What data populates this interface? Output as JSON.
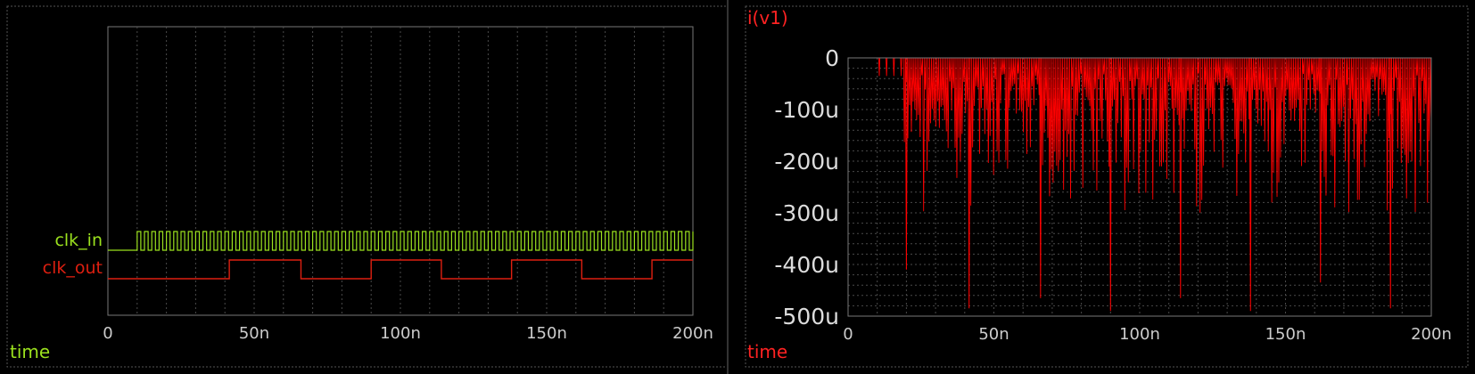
{
  "chart_data": [
    {
      "type": "line",
      "xlabel": "time",
      "x_ticks": [
        "0",
        "50n",
        "100n",
        "150n",
        "200n"
      ],
      "xlim": [
        0,
        200
      ],
      "x_unit": "ns",
      "grid": true,
      "series": [
        {
          "name": "clk_in",
          "color": "#9be11e",
          "kind": "digital-clock",
          "start_ns": 10,
          "period_ns": 2.5,
          "duty": 0.5
        },
        {
          "name": "clk_out",
          "color": "#dd1f10",
          "kind": "digital-steps",
          "transitions_ns": [
            0,
            41.5,
            66,
            90,
            114,
            138,
            162,
            186
          ],
          "initial_level": 0
        }
      ]
    },
    {
      "type": "line",
      "title": "i(v1)",
      "xlabel": "time",
      "x_ticks": [
        "0",
        "50n",
        "100n",
        "150n",
        "200n"
      ],
      "y_ticks": [
        "0",
        "-100u",
        "-200u",
        "-300u",
        "-400u",
        "-500u"
      ],
      "xlim": [
        0,
        200
      ],
      "ylim": [
        -500,
        0
      ],
      "x_unit": "ns",
      "y_unit": "uA",
      "grid": true,
      "series": [
        {
          "name": "i(v1)",
          "color": "#ff0000",
          "kind": "current-spikes",
          "noise_start_ns": 19,
          "spike_spacing_ns": 0.6,
          "typical_min_uA": -300,
          "big_spikes": [
            {
              "t": 20,
              "v": -410
            },
            {
              "t": 41.5,
              "v": -485
            },
            {
              "t": 66,
              "v": -465
            },
            {
              "t": 90,
              "v": -490
            },
            {
              "t": 114,
              "v": -465
            },
            {
              "t": 138,
              "v": -490
            },
            {
              "t": 162,
              "v": -435
            },
            {
              "t": 186,
              "v": -485
            }
          ]
        }
      ]
    }
  ]
}
